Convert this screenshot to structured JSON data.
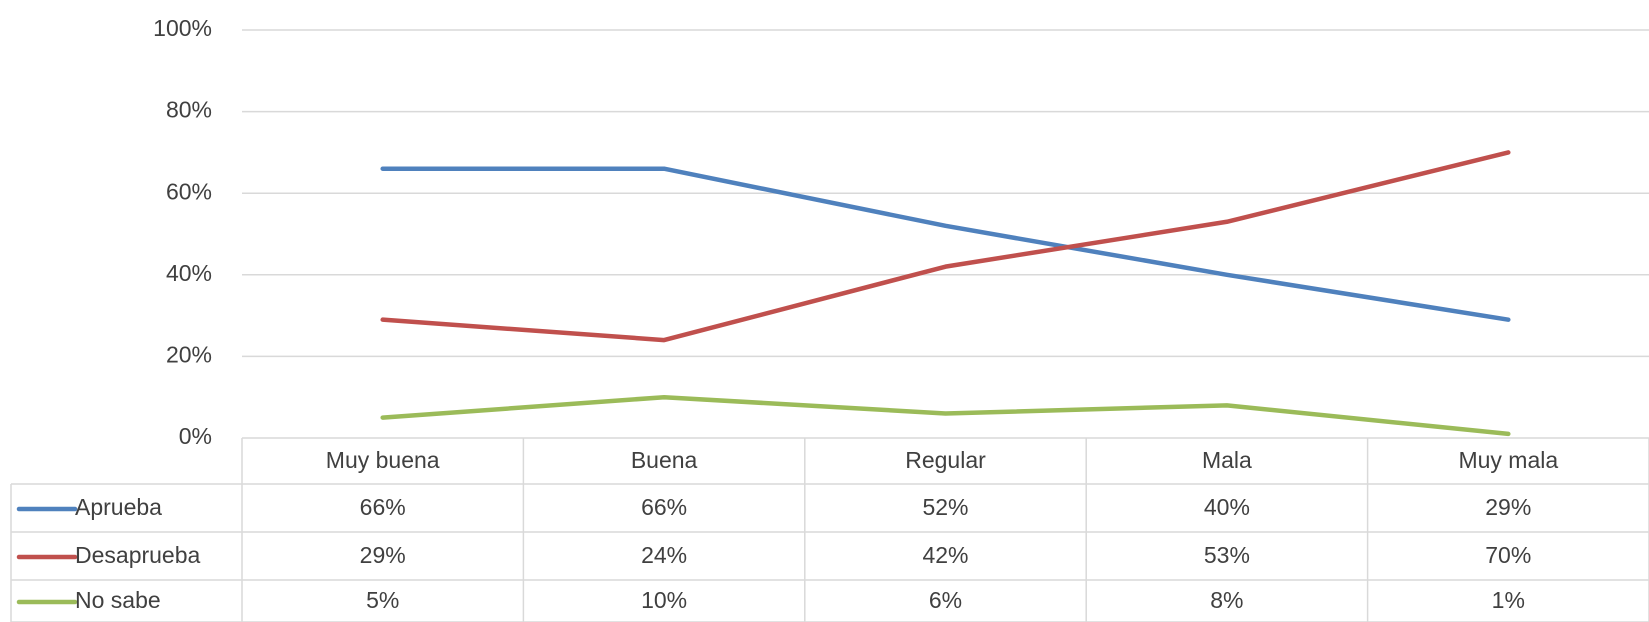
{
  "chart_data": {
    "type": "line",
    "categories": [
      "Muy buena",
      "Buena",
      "Regular",
      "Mala",
      "Muy mala"
    ],
    "series": [
      {
        "name": "Aprueba",
        "color": "#4f81bd",
        "values": [
          66,
          66,
          52,
          40,
          29
        ],
        "value_labels": [
          "66%",
          "66%",
          "52%",
          "40%",
          "29%"
        ]
      },
      {
        "name": "Desaprueba",
        "color": "#c0504d",
        "values": [
          29,
          24,
          42,
          53,
          70
        ],
        "value_labels": [
          "29%",
          "24%",
          "42%",
          "53%",
          "70%"
        ]
      },
      {
        "name": "No sabe",
        "color": "#9bbb59",
        "values": [
          5,
          10,
          6,
          8,
          1
        ],
        "value_labels": [
          "5%",
          "10%",
          "6%",
          "8%",
          "1%"
        ]
      }
    ],
    "ylim": [
      0,
      100
    ],
    "yticks": [
      {
        "value": 0,
        "label": "0%"
      },
      {
        "value": 20,
        "label": "20%"
      },
      {
        "value": 40,
        "label": "40%"
      },
      {
        "value": 60,
        "label": "60%"
      },
      {
        "value": 80,
        "label": "80%"
      },
      {
        "value": 100,
        "label": "100%"
      }
    ],
    "grid": true
  }
}
